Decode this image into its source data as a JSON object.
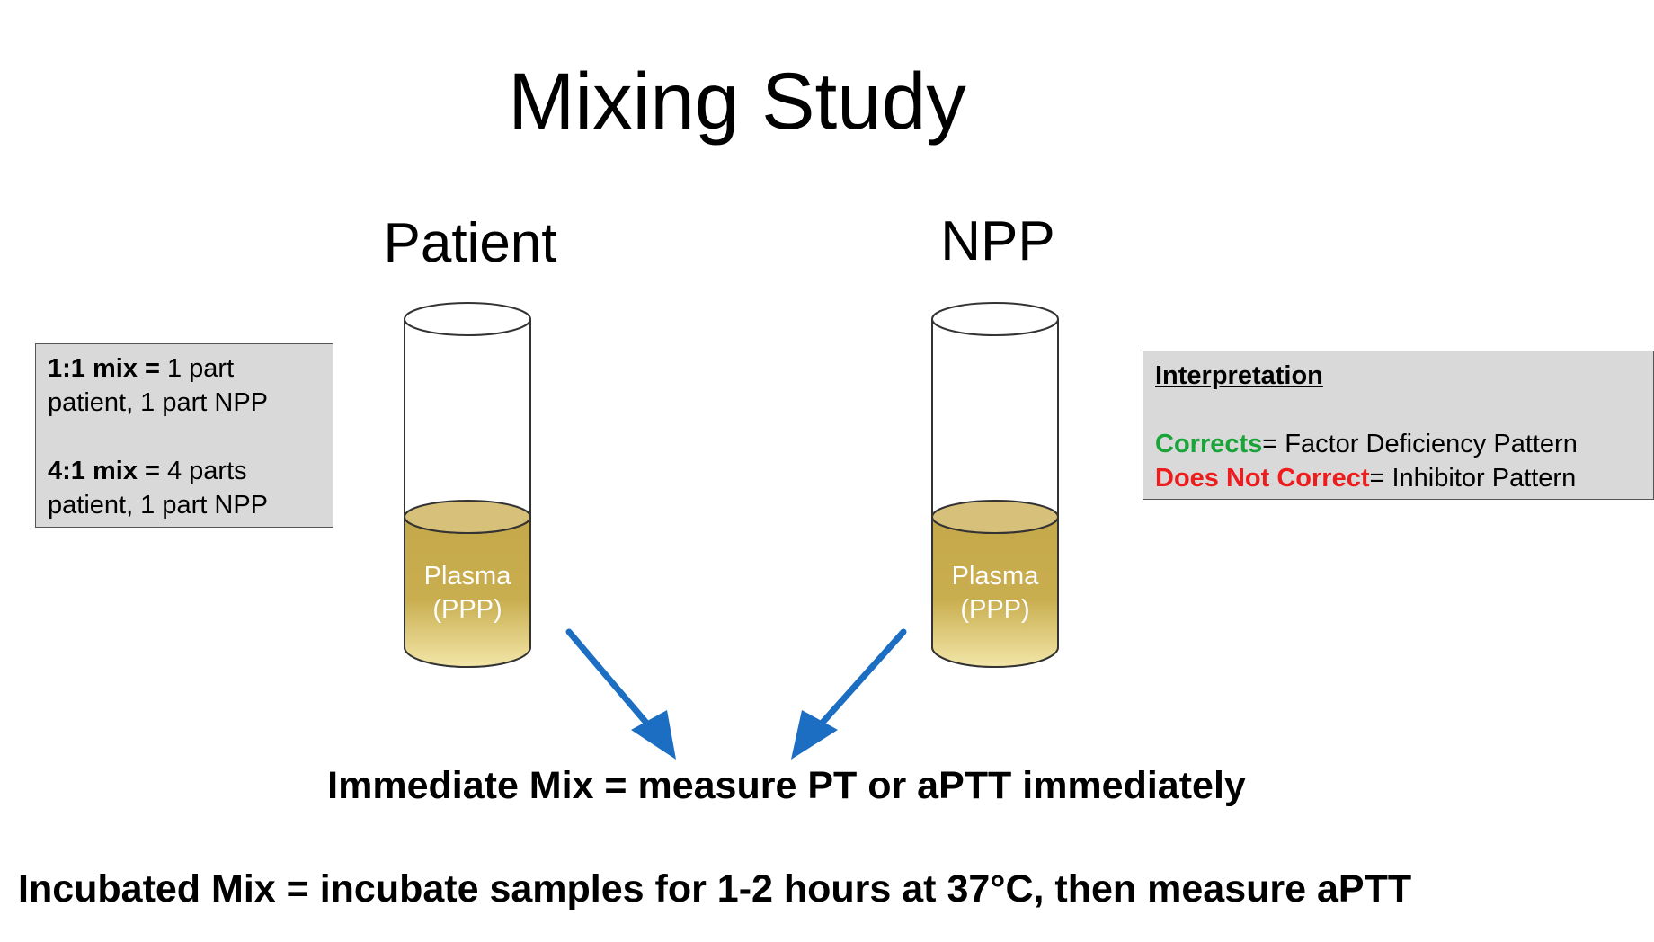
{
  "title": "Mixing Study",
  "tubes": {
    "patient": {
      "label": "Patient",
      "content_line1": "Plasma",
      "content_line2": "(PPP)"
    },
    "npp": {
      "label": "NPP",
      "content_line1": "Plasma",
      "content_line2": "(PPP)"
    }
  },
  "mix_box": {
    "line1_bold": "1:1 mix =",
    "line1_rest": " 1 part",
    "line2": "patient, 1 part NPP",
    "line3_bold": "4:1 mix =",
    "line3_rest": " 4 parts",
    "line4": "patient, 1 part NPP"
  },
  "interpretation": {
    "heading": "Interpretation",
    "corrects": "Corrects",
    "corrects_text": "= Factor Deficiency Pattern",
    "not_correct": "Does Not Correct",
    "not_correct_text": "= Inhibitor Pattern"
  },
  "immediate_mix": "Immediate Mix = measure PT or aPTT immediately",
  "incubated_mix": "Incubated Mix = incubate samples for 1-2 hours at 37°C, then measure aPTT",
  "colors": {
    "plasma_top": "#c4a84a",
    "plasma_bottom": "#f2e6a8",
    "arrow": "#1b6ec2",
    "box_bg": "#d9d9d9",
    "corrects": "#19a339",
    "not_correct": "#ee1c1c"
  }
}
